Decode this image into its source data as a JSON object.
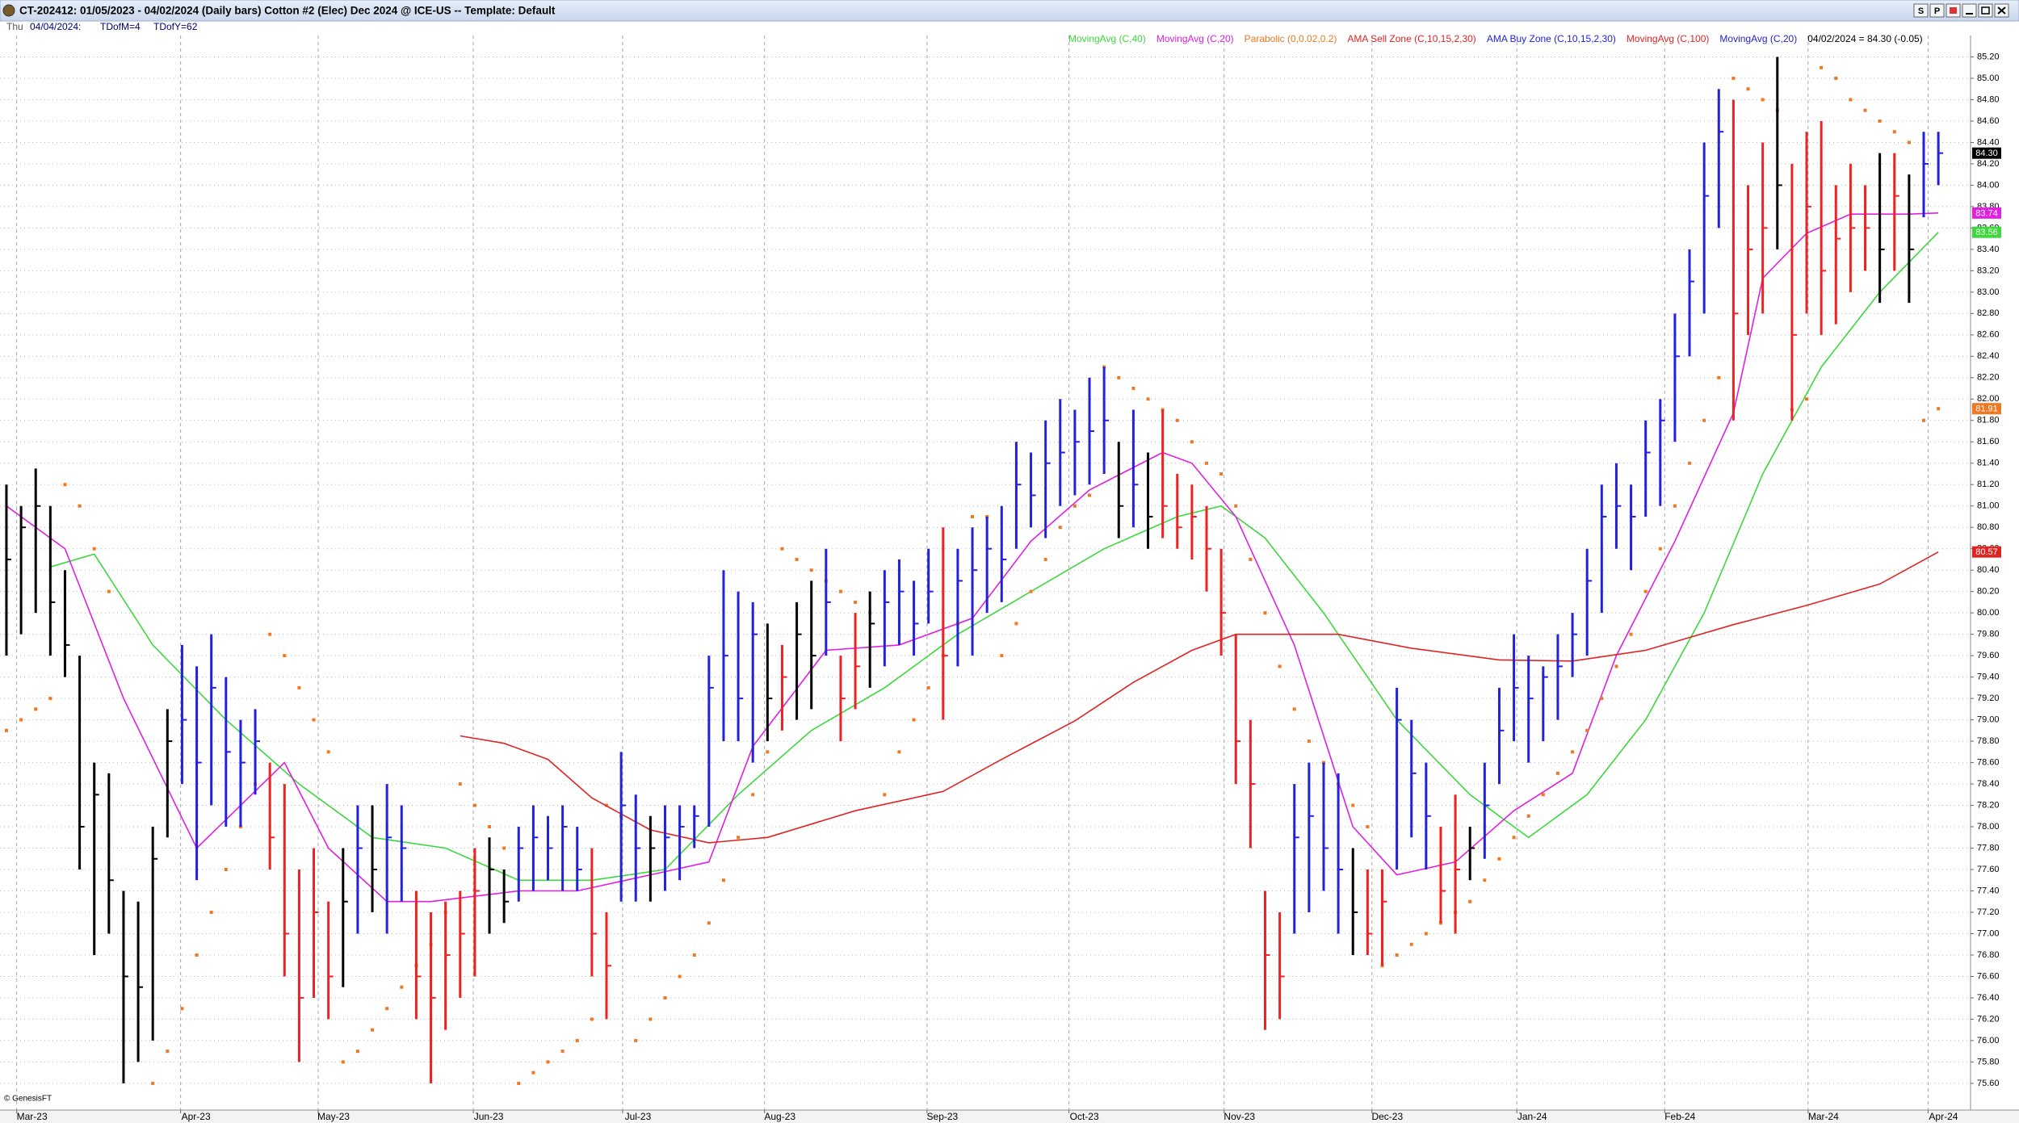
{
  "window": {
    "title": "CT-202412:  01/05/2023 - 04/02/2024  (Daily bars)   Cotton #2 (Elec) Dec 2024 @ ICE-US  --  Template: Default",
    "buttons": [
      "S",
      "P"
    ]
  },
  "info": {
    "day": "Thu",
    "date": "04/04/2024:",
    "tdofm": "TDofM=4",
    "tdofy": "TDofY=62"
  },
  "chart_data": {
    "type": "hlc",
    "quote": "04/02/2024 = 84.30 (-0.05)",
    "watermark": "© GenesisFT",
    "grid": true,
    "xlim": [
      -0.44,
      134.2
    ],
    "xticks": [
      {
        "value": 0.7,
        "label": "Mar-23"
      },
      {
        "value": 11.9,
        "label": "Apr-23"
      },
      {
        "value": 21.3,
        "label": "May-23"
      },
      {
        "value": 31.9,
        "label": "Jun-23"
      },
      {
        "value": 42.1,
        "label": "Jul-23"
      },
      {
        "value": 51.8,
        "label": "Aug-23"
      },
      {
        "value": 62.9,
        "label": "Sep-23"
      },
      {
        "value": 72.6,
        "label": "Oct-23"
      },
      {
        "value": 83.2,
        "label": "Nov-23"
      },
      {
        "value": 93.3,
        "label": "Dec-23"
      },
      {
        "value": 103.2,
        "label": "Jan-24"
      },
      {
        "value": 113.3,
        "label": "Feb-24"
      },
      {
        "value": 123.1,
        "label": "Mar-24"
      },
      {
        "value": 131.3,
        "label": "Apr-24"
      }
    ],
    "ylim": [
      75.35,
      85.4
    ],
    "yticks": [
      {
        "value": 75.6,
        "label": "75.60"
      },
      {
        "value": 75.8,
        "label": "75.80"
      },
      {
        "value": 76,
        "label": "76.00"
      },
      {
        "value": 76.2,
        "label": "76.20"
      },
      {
        "value": 76.4,
        "label": "76.40"
      },
      {
        "value": 76.6,
        "label": "76.60"
      },
      {
        "value": 76.8,
        "label": "76.80"
      },
      {
        "value": 77,
        "label": "77.00"
      },
      {
        "value": 77.2,
        "label": "77.20"
      },
      {
        "value": 77.4,
        "label": "77.40"
      },
      {
        "value": 77.6,
        "label": "77.60"
      },
      {
        "value": 77.8,
        "label": "77.80"
      },
      {
        "value": 78,
        "label": "78.00"
      },
      {
        "value": 78.2,
        "label": "78.20"
      },
      {
        "value": 78.4,
        "label": "78.40"
      },
      {
        "value": 78.6,
        "label": "78.60"
      },
      {
        "value": 78.8,
        "label": "78.80"
      },
      {
        "value": 79,
        "label": "79.00"
      },
      {
        "value": 79.2,
        "label": "79.20"
      },
      {
        "value": 79.4,
        "label": "79.40"
      },
      {
        "value": 79.6,
        "label": "79.60"
      },
      {
        "value": 79.8,
        "label": "79.80"
      },
      {
        "value": 80,
        "label": "80.00"
      },
      {
        "value": 80.2,
        "label": "80.20"
      },
      {
        "value": 80.4,
        "label": "80.40"
      },
      {
        "value": 80.6,
        "label": "80.60"
      },
      {
        "value": 80.8,
        "label": "80.80"
      },
      {
        "value": 81,
        "label": "81.00"
      },
      {
        "value": 81.2,
        "label": "81.20"
      },
      {
        "value": 81.4,
        "label": "81.40"
      },
      {
        "value": 81.6,
        "label": "81.60"
      },
      {
        "value": 81.8,
        "label": "81.80"
      },
      {
        "value": 82,
        "label": "82.00"
      },
      {
        "value": 82.2,
        "label": "82.20"
      },
      {
        "value": 82.4,
        "label": "82.40"
      },
      {
        "value": 82.6,
        "label": "82.60"
      },
      {
        "value": 82.8,
        "label": "82.80"
      },
      {
        "value": 83,
        "label": "83.00"
      },
      {
        "value": 83.2,
        "label": "83.20"
      },
      {
        "value": 83.4,
        "label": "83.40"
      },
      {
        "value": 83.6,
        "label": "83.60"
      },
      {
        "value": 83.8,
        "label": "83.80"
      },
      {
        "value": 84,
        "label": "84.00"
      },
      {
        "value": 84.2,
        "label": "84.20"
      },
      {
        "value": 84.4,
        "label": "84.40"
      },
      {
        "value": 84.6,
        "label": "84.60"
      },
      {
        "value": 84.8,
        "label": "84.80"
      },
      {
        "value": 85,
        "label": "85.00"
      },
      {
        "value": 85.2,
        "label": "85.20"
      }
    ],
    "bars": {
      "high": [
        81.2,
        81.0,
        81.35,
        81.0,
        80.4,
        79.6,
        78.6,
        78.5,
        77.4,
        77.3,
        78.0,
        79.1,
        79.7,
        79.5,
        79.8,
        79.4,
        79.0,
        79.1,
        78.6,
        78.4,
        77.6,
        77.8,
        77.3,
        77.8,
        78.2,
        78.2,
        78.4,
        78.2,
        77.4,
        77.2,
        77.3,
        77.4,
        77.8,
        77.9,
        77.6,
        78.0,
        78.2,
        78.1,
        78.2,
        78.0,
        77.8,
        77.2,
        78.7,
        78.3,
        78.1,
        78.2,
        78.2,
        78.2,
        79.6,
        80.4,
        80.2,
        80.1,
        79.9,
        79.7,
        80.1,
        80.3,
        80.6,
        79.6,
        80.0,
        80.2,
        80.4,
        80.5,
        80.3,
        80.6,
        80.8,
        80.6,
        80.8,
        80.9,
        81.0,
        81.6,
        81.5,
        81.8,
        82.0,
        81.9,
        82.2,
        82.3,
        81.6,
        81.9,
        81.5,
        81.9,
        81.3,
        81.2,
        81.0,
        80.6,
        79.8,
        79.0,
        77.4,
        77.2,
        78.4,
        78.6,
        78.6,
        78.5,
        77.8,
        77.6,
        77.6,
        79.3,
        79.0,
        78.6,
        78.0,
        78.3,
        78.0,
        78.6,
        79.3,
        79.8,
        79.6,
        79.5,
        79.8,
        80.0,
        80.6,
        81.2,
        81.4,
        81.2,
        81.8,
        82.0,
        82.8,
        83.4,
        84.4,
        84.9,
        84.8,
        84.0,
        84.4,
        85.2,
        84.2,
        84.5,
        84.6,
        84.0,
        84.2,
        84.0,
        84.3,
        84.3,
        84.1,
        84.5,
        84.5
      ],
      "low": [
        79.6,
        79.8,
        80.0,
        79.6,
        79.4,
        77.6,
        76.8,
        77.0,
        75.6,
        75.8,
        76.0,
        77.9,
        78.4,
        77.5,
        78.2,
        78.0,
        78.0,
        78.3,
        77.6,
        76.6,
        75.8,
        76.4,
        76.2,
        76.5,
        77.0,
        77.2,
        77.0,
        77.3,
        76.2,
        75.6,
        76.1,
        76.4,
        76.6,
        77.0,
        77.1,
        77.3,
        77.4,
        77.5,
        77.4,
        77.4,
        76.6,
        76.2,
        77.3,
        77.3,
        77.3,
        77.4,
        77.5,
        77.8,
        78.0,
        78.8,
        78.8,
        78.6,
        78.8,
        78.9,
        79.0,
        79.1,
        79.6,
        78.8,
        79.1,
        79.3,
        79.5,
        79.7,
        79.6,
        79.9,
        79.0,
        79.5,
        79.6,
        80.0,
        80.1,
        80.6,
        80.8,
        80.7,
        81.0,
        81.1,
        81.2,
        81.3,
        80.7,
        80.8,
        80.6,
        80.7,
        80.6,
        80.5,
        80.2,
        79.6,
        78.4,
        77.8,
        76.1,
        76.2,
        77.0,
        77.2,
        77.4,
        77.0,
        76.8,
        76.8,
        76.7,
        77.6,
        77.9,
        77.6,
        77.1,
        77.0,
        77.5,
        77.7,
        78.4,
        78.8,
        78.6,
        78.8,
        79.0,
        79.4,
        79.6,
        80.0,
        80.6,
        80.4,
        80.9,
        81.0,
        81.6,
        82.4,
        82.8,
        83.6,
        81.8,
        82.6,
        82.8,
        83.4,
        81.8,
        82.8,
        82.6,
        82.7,
        83.0,
        83.2,
        82.9,
        83.2,
        82.9,
        83.7,
        84.0
      ],
      "close": [
        80.5,
        80.8,
        81.0,
        80.1,
        79.7,
        78.0,
        78.3,
        77.5,
        76.6,
        76.5,
        77.7,
        78.8,
        79.0,
        78.6,
        79.3,
        78.7,
        78.6,
        78.8,
        77.9,
        77.0,
        76.4,
        77.2,
        76.6,
        77.3,
        77.8,
        77.6,
        77.9,
        77.8,
        76.6,
        76.4,
        76.8,
        77.0,
        77.4,
        77.6,
        77.3,
        77.8,
        77.9,
        77.8,
        78.0,
        77.6,
        77.0,
        76.7,
        78.2,
        77.8,
        77.8,
        77.9,
        78.0,
        78.1,
        79.3,
        79.6,
        79.2,
        79.8,
        79.2,
        79.4,
        79.8,
        79.6,
        80.1,
        79.2,
        79.5,
        79.9,
        80.1,
        80.2,
        79.9,
        80.2,
        79.6,
        80.3,
        80.4,
        80.6,
        80.5,
        81.2,
        81.1,
        81.4,
        81.5,
        81.6,
        81.7,
        81.8,
        81.0,
        81.2,
        80.9,
        81.0,
        80.8,
        80.9,
        80.6,
        80.0,
        78.8,
        78.4,
        76.8,
        76.6,
        77.9,
        78.1,
        77.8,
        77.6,
        77.2,
        77.0,
        77.3,
        79.0,
        78.5,
        78.1,
        77.4,
        77.6,
        77.8,
        78.2,
        78.9,
        79.3,
        79.2,
        79.4,
        79.5,
        79.8,
        80.3,
        80.9,
        81.0,
        80.9,
        81.5,
        81.8,
        82.4,
        83.1,
        83.9,
        84.5,
        82.8,
        83.4,
        83.6,
        84.0,
        82.6,
        83.8,
        83.2,
        83.5,
        83.6,
        83.6,
        83.4,
        83.9,
        83.4,
        84.2,
        84.3
      ],
      "colors": [
        "#000",
        "#000",
        "#000",
        "#000",
        "#000",
        "#000",
        "#000",
        "#000",
        "#000",
        "#000",
        "#000",
        "#000",
        "#22d",
        "#22d",
        "#22d",
        "#22d",
        "#22d",
        "#22d",
        "#e22",
        "#e22",
        "#e22",
        "#e22",
        "#e22",
        "#000",
        "#22d",
        "#000",
        "#22d",
        "#22d",
        "#e22",
        "#e22",
        "#e22",
        "#e22",
        "#e22",
        "#000",
        "#000",
        "#22d",
        "#22d",
        "#22d",
        "#22d",
        "#22d",
        "#e22",
        "#e22",
        "#22d",
        "#22d",
        "#000",
        "#22d",
        "#22d",
        "#22d",
        "#22d",
        "#22d",
        "#22d",
        "#22d",
        "#000",
        "#e22",
        "#000",
        "#000",
        "#22d",
        "#e22",
        "#e22",
        "#000",
        "#22d",
        "#22d",
        "#22d",
        "#22d",
        "#e22",
        "#22d",
        "#22d",
        "#22d",
        "#22d",
        "#22d",
        "#22d",
        "#22d",
        "#22d",
        "#22d",
        "#22d",
        "#22d",
        "#000",
        "#22d",
        "#000",
        "#e22",
        "#e22",
        "#e22",
        "#e22",
        "#e22",
        "#e22",
        "#e22",
        "#e22",
        "#e22",
        "#22d",
        "#22d",
        "#22d",
        "#22d",
        "#000",
        "#e22",
        "#e22",
        "#22d",
        "#22d",
        "#22d",
        "#e22",
        "#e22",
        "#000",
        "#22d",
        "#22d",
        "#22d",
        "#22d",
        "#22d",
        "#22d",
        "#22d",
        "#22d",
        "#22d",
        "#22d",
        "#22d",
        "#22d",
        "#22d",
        "#22d",
        "#22d",
        "#22d",
        "#22d",
        "#e22",
        "#e22",
        "#e22",
        "#000",
        "#e22",
        "#e22",
        "#e22",
        "#e22",
        "#e22",
        "#e22",
        "#000",
        "#e22",
        "#000",
        "#22d",
        "#22d"
      ],
      "last_label": "84.30"
    },
    "series": [
      {
        "name": "MovingAvg (C,40)",
        "style": "line",
        "color": "#3cd83c",
        "last_label": "83.56",
        "x": [
          3,
          6,
          10,
          15,
          20,
          25,
          30,
          35,
          40,
          45,
          50,
          55,
          60,
          65,
          70,
          75,
          80,
          83,
          86,
          90,
          95,
          100,
          104,
          108,
          112,
          116,
          120,
          124,
          128,
          132
        ],
        "values": [
          80.43,
          80.55,
          79.7,
          79.0,
          78.4,
          77.9,
          77.8,
          77.5,
          77.5,
          77.6,
          78.3,
          78.9,
          79.3,
          79.8,
          80.2,
          80.6,
          80.9,
          81.0,
          80.7,
          80.0,
          79.0,
          78.3,
          77.9,
          78.3,
          79.0,
          80.0,
          81.3,
          82.3,
          83.0,
          83.56
        ]
      },
      {
        "name": "MovingAvg (C,20)",
        "style": "line",
        "color": "#e020e0",
        "last_label": "83.74",
        "x": [
          0,
          4,
          8,
          13,
          19,
          22,
          26,
          29,
          35,
          39,
          44,
          48,
          51,
          56,
          61,
          66,
          70,
          74,
          79,
          81,
          84,
          88,
          92,
          95,
          99,
          103,
          107,
          110,
          114,
          118,
          120,
          123,
          126,
          130,
          132
        ],
        "values": [
          81.0,
          80.6,
          79.2,
          77.8,
          78.6,
          77.8,
          77.3,
          77.3,
          77.4,
          77.4,
          77.55,
          77.67,
          78.75,
          79.65,
          79.7,
          79.95,
          80.67,
          81.15,
          81.5,
          81.4,
          80.9,
          79.7,
          78.0,
          77.55,
          77.67,
          78.15,
          78.5,
          79.6,
          80.67,
          81.87,
          83.13,
          83.55,
          83.73,
          83.73,
          83.74
        ]
      },
      {
        "name": "Parabolic (0,0.02,0.2)",
        "style": "dots",
        "color": "#f07820",
        "last_label": "81.91",
        "values": [
          78.9,
          79.0,
          79.1,
          79.2,
          81.2,
          81.0,
          80.6,
          80.2,
          null,
          null,
          75.6,
          75.9,
          76.3,
          76.8,
          77.2,
          77.6,
          78.0,
          78.4,
          79.8,
          79.6,
          79.3,
          79.0,
          78.7,
          75.8,
          75.9,
          76.1,
          76.3,
          76.5,
          76.7,
          76.9,
          77.2,
          78.4,
          78.2,
          78.0,
          77.8,
          75.6,
          75.7,
          75.8,
          75.9,
          76.0,
          76.2,
          78.2,
          78.1,
          76.0,
          76.2,
          76.4,
          76.6,
          76.8,
          77.1,
          77.5,
          77.9,
          78.3,
          78.7,
          80.6,
          80.5,
          80.4,
          80.3,
          80.2,
          80.1,
          80.0,
          78.3,
          78.7,
          79.0,
          79.3,
          79.6,
          79.9,
          80.9,
          80.9,
          79.6,
          79.9,
          80.2,
          80.5,
          80.8,
          81.0,
          81.1,
          82.3,
          82.2,
          82.1,
          82.0,
          81.9,
          81.8,
          81.6,
          81.4,
          81.3,
          81.0,
          80.5,
          80.0,
          79.5,
          79.1,
          78.8,
          78.6,
          78.4,
          78.2,
          78.0,
          76.7,
          76.8,
          76.9,
          77.0,
          77.1,
          77.2,
          77.3,
          77.5,
          77.7,
          77.9,
          78.1,
          78.3,
          78.5,
          78.7,
          78.9,
          79.2,
          79.5,
          79.8,
          80.2,
          80.6,
          81.0,
          81.4,
          81.8,
          82.2,
          85.0,
          84.9,
          84.8,
          84.7,
          81.9,
          82.0,
          85.1,
          85.0,
          84.8,
          84.7,
          84.6,
          84.5,
          84.4,
          81.8,
          81.91
        ]
      },
      {
        "name": "AMA Sell Zone (C,10,15,2,30)",
        "style": "zone",
        "color": "#e22222"
      },
      {
        "name": "AMA Buy Zone (C,10,15,2,30)",
        "style": "zone",
        "color": "#2222dd"
      },
      {
        "name": "MovingAvg (C,100)",
        "style": "line",
        "color": "#e02424",
        "last_label": "80.57",
        "x": [
          31,
          34,
          37,
          40,
          44,
          48,
          52,
          58,
          64,
          68,
          73,
          77,
          81,
          84,
          91,
          96,
          102,
          107,
          112,
          118,
          123,
          128,
          132
        ],
        "values": [
          78.85,
          78.78,
          78.63,
          78.27,
          77.97,
          77.85,
          77.9,
          78.15,
          78.33,
          78.63,
          78.99,
          79.35,
          79.65,
          79.8,
          79.8,
          79.67,
          79.56,
          79.55,
          79.65,
          79.89,
          80.07,
          80.27,
          80.57
        ]
      },
      {
        "name": "MovingAvg (C,20)",
        "style": "line",
        "color": "#2424c8"
      }
    ]
  }
}
